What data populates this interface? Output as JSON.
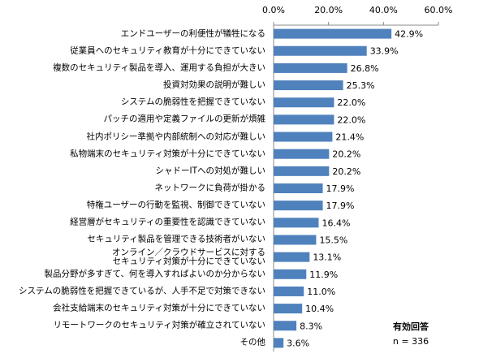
{
  "chart_data": {
    "type": "barh",
    "categories": [
      "エンドユーザーの利便性が犠牲になる",
      "従業員へのセキュリティ教育が十分にできていない",
      "複数のセキュリティ製品を導入、運用する負担が大きい",
      "投資対効果の説明が難しい",
      "システムの脆弱性を把握できていない",
      "パッチの適用や定義ファイルの更新が煩雑",
      "社内ポリシー準拠や内部統制への対応が難しい",
      "私物端末のセキュリティ対策が十分にできていない",
      "シャドーITへの対処が難しい",
      "ネットワークに負荷が掛かる",
      "特権ユーザーの行動を監視、制御できていない",
      "経営層がセキュリティの重要性を認識できていない",
      "セキュリティ製品を管理できる技術者がいない",
      "オンライン／クラウドサービスに対する\nセキュリティ対策が十分にできていない",
      "製品分野が多すぎて、何を導入すればよいのか分からない",
      "システムの脆弱性を把握できているが、人手不足で対策できない",
      "会社支給端末のセキュリティ対策が十分にできていない",
      "リモートワークのセキュリティ対策が確立されていない",
      "その他"
    ],
    "values": [
      42.9,
      33.9,
      26.8,
      25.3,
      22.0,
      22.0,
      21.4,
      20.2,
      20.2,
      17.9,
      17.9,
      16.4,
      15.5,
      13.1,
      11.9,
      11.0,
      10.4,
      8.3,
      3.6
    ],
    "value_labels": [
      "42.9%",
      "33.9%",
      "26.8%",
      "25.3%",
      "22.0%",
      "22.0%",
      "21.4%",
      "20.2%",
      "20.2%",
      "17.9%",
      "17.9%",
      "16.4%",
      "15.5%",
      "13.1%",
      "11.9%",
      "11.0%",
      "10.4%",
      "8.3%",
      "3.6%"
    ],
    "color": "#4f81bd",
    "xlim": [
      0,
      60
    ],
    "xticks": [
      {
        "value": 0,
        "label": "0.0%"
      },
      {
        "value": 20,
        "label": "20.0%"
      },
      {
        "value": 40,
        "label": "40.0%"
      },
      {
        "value": 60,
        "label": "60.0%"
      }
    ],
    "annotation_title": "有効回答",
    "annotation_n": "n = 336"
  }
}
